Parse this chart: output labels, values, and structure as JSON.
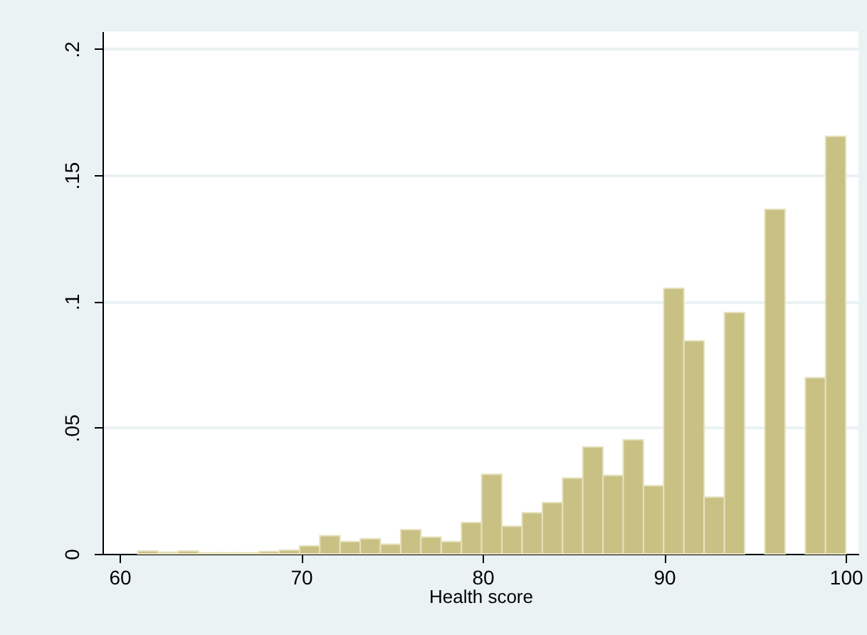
{
  "chart_data": {
    "type": "histogram",
    "xlabel": "Health score",
    "bins": [
      61,
      62.114,
      63.229,
      64.343,
      65.457,
      66.571,
      67.686,
      68.8,
      69.914,
      71.029,
      72.143,
      73.257,
      74.371,
      75.486,
      76.6,
      77.714,
      78.829,
      79.943,
      81.057,
      82.171,
      83.286,
      84.4,
      85.514,
      86.629,
      87.743,
      88.857,
      89.971,
      91.086,
      92.2,
      93.314,
      94.429,
      95.543,
      96.657,
      97.771,
      98.886,
      100
    ],
    "values": [
      0.0011,
      0.0006,
      0.0011,
      0.0004,
      0.0004,
      0.0004,
      0.0009,
      0.0015,
      0.0032,
      0.0072,
      0.0049,
      0.006,
      0.0038,
      0.0096,
      0.0066,
      0.0049,
      0.0124,
      0.0315,
      0.0109,
      0.0163,
      0.0203,
      0.03,
      0.0424,
      0.0311,
      0.0452,
      0.027,
      0.1052,
      0.0844,
      0.0225,
      0.0956,
      null,
      0.1365,
      null,
      0.0698,
      0.1654
    ],
    "color": "#c9c184",
    "xlim": [
      59.06,
      100.7
    ],
    "xticks": [
      60,
      70,
      80,
      90,
      100
    ],
    "ylim": [
      0,
      0.207
    ],
    "yticks": [
      {
        "value": 0,
        "label": "0"
      },
      {
        "value": 0.05,
        "label": ".05"
      },
      {
        "value": 0.1,
        "label": ".1"
      },
      {
        "value": 0.15,
        "label": ".15"
      },
      {
        "value": 0.2,
        "label": ".2"
      }
    ],
    "grid": "y"
  }
}
